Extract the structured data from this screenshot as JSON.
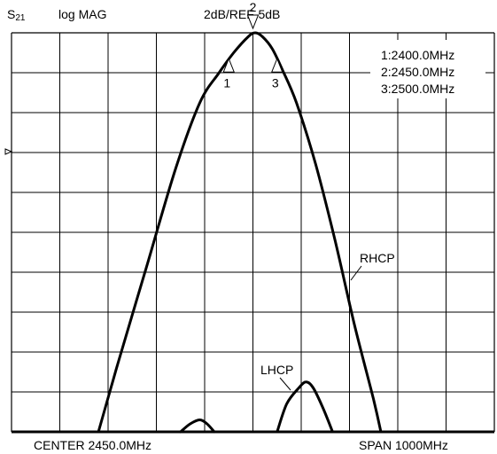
{
  "header": {
    "param": "S",
    "param_sub": "21",
    "format": "log MAG",
    "scale": "2dB/REF-5dB"
  },
  "footer": {
    "center": "CENTER 2450.0MHz",
    "span": "SPAN 1000MHz"
  },
  "markers_box": [
    "1:2400.0MHz",
    "2:2450.0MHz",
    "3:2500.0MHz"
  ],
  "chart_data": {
    "type": "line",
    "xlabel": "",
    "ylabel": "",
    "x_unit": "MHz",
    "xlim": [
      1950,
      2950
    ],
    "ylim": [
      -23,
      -3
    ],
    "grid": true,
    "x_divisions": 10,
    "y_divisions": 10,
    "reference_level_db": -5,
    "scale_db_per_div": 2,
    "series": [
      {
        "name": "RHCP",
        "points": [
          [
            2130,
            -23.0
          ],
          [
            2170,
            -19.6
          ],
          [
            2230,
            -14.7
          ],
          [
            2290,
            -9.8
          ],
          [
            2340,
            -6.5
          ],
          [
            2380,
            -5.0
          ],
          [
            2410,
            -4.0
          ],
          [
            2440,
            -3.2
          ],
          [
            2455,
            -3.0
          ],
          [
            2470,
            -3.2
          ],
          [
            2490,
            -3.8
          ],
          [
            2510,
            -4.8
          ],
          [
            2540,
            -6.5
          ],
          [
            2580,
            -9.6
          ],
          [
            2620,
            -13.4
          ],
          [
            2660,
            -17.6
          ],
          [
            2700,
            -21.4
          ],
          [
            2715,
            -23.0
          ]
        ]
      },
      {
        "name": "LHCP",
        "points": [
          [
            2500,
            -23.0
          ],
          [
            2520,
            -21.6
          ],
          [
            2545,
            -20.8
          ],
          [
            2560,
            -20.5
          ],
          [
            2575,
            -20.8
          ],
          [
            2595,
            -21.8
          ],
          [
            2615,
            -23.0
          ]
        ]
      },
      {
        "name": "",
        "points": [
          [
            2300,
            -23.0
          ],
          [
            2320,
            -22.6
          ],
          [
            2340,
            -22.4
          ],
          [
            2355,
            -22.6
          ],
          [
            2370,
            -23.0
          ]
        ]
      }
    ],
    "markers": [
      {
        "label": "1",
        "freq": 2400,
        "db": -4.3
      },
      {
        "label": "2",
        "freq": 2450,
        "db": -3.0
      },
      {
        "label": "3",
        "freq": 2500,
        "db": -4.3
      }
    ],
    "labels": [
      {
        "text": "RHCP",
        "series": "RHCP"
      },
      {
        "text": "LHCP",
        "series": "LHCP"
      }
    ]
  }
}
